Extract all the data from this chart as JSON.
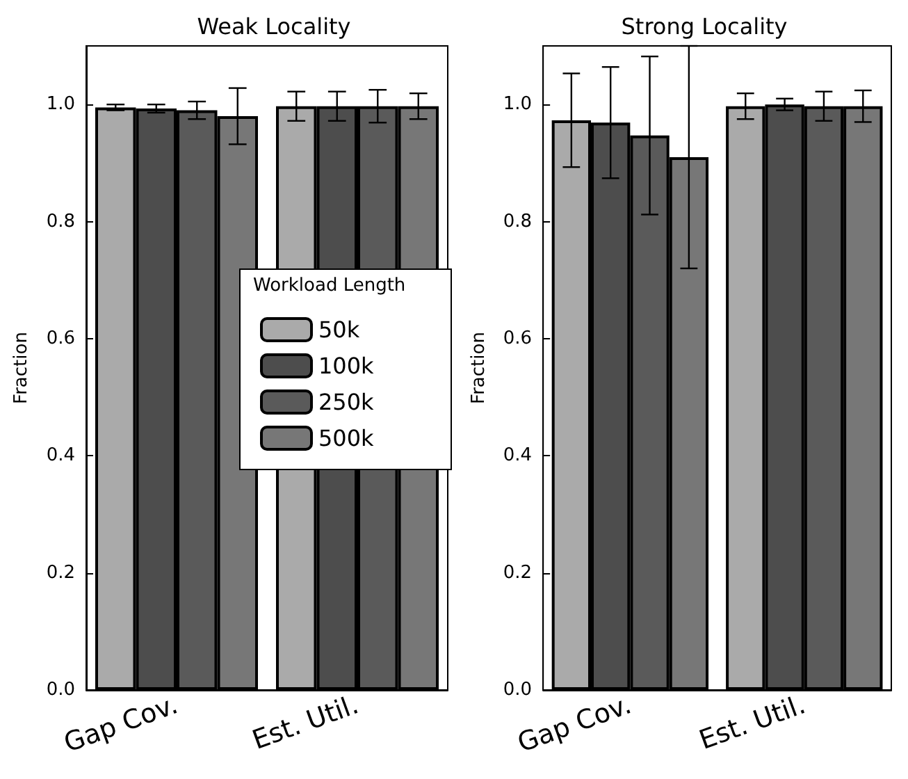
{
  "chart_data": [
    {
      "type": "bar",
      "title": "Weak Locality",
      "ylabel": "Fraction",
      "legend_title": "Workload Length",
      "legend": "center",
      "grid": false,
      "categories": [
        "Gap Cov.",
        "Est. Util."
      ],
      "ylim": [
        0,
        1.1
      ],
      "yticks": [
        {
          "value": 0,
          "label": "0.0"
        },
        {
          "value": 0.2,
          "label": "0.2"
        },
        {
          "value": 0.4,
          "label": "0.4"
        },
        {
          "value": 0.6,
          "label": "0.6"
        },
        {
          "value": 0.8,
          "label": "0.8"
        },
        {
          "value": 1.0,
          "label": "1.0"
        }
      ],
      "series": [
        {
          "name": "50k",
          "color": "#aaaaaa",
          "values": [
            0.995,
            0.997
          ],
          "errors": [
            0.005,
            0.025
          ]
        },
        {
          "name": "100k",
          "color": "#4d4d4d",
          "values": [
            0.993,
            0.997
          ],
          "errors": [
            0.007,
            0.025
          ]
        },
        {
          "name": "250k",
          "color": "#5a5a5a",
          "values": [
            0.99,
            0.997
          ],
          "errors": [
            0.015,
            0.028
          ]
        },
        {
          "name": "500k",
          "color": "#777777",
          "values": [
            0.98,
            0.997
          ],
          "errors": [
            0.048,
            0.022
          ]
        }
      ]
    },
    {
      "type": "bar",
      "title": "Strong Locality",
      "ylabel": "Fraction",
      "legend": false,
      "grid": false,
      "categories": [
        "Gap Cov.",
        "Est. Util."
      ],
      "ylim": [
        0,
        1.1
      ],
      "yticks": [
        {
          "value": 0,
          "label": "0.0"
        },
        {
          "value": 0.2,
          "label": "0.2"
        },
        {
          "value": 0.4,
          "label": "0.4"
        },
        {
          "value": 0.6,
          "label": "0.6"
        },
        {
          "value": 0.8,
          "label": "0.8"
        },
        {
          "value": 1.0,
          "label": "1.0"
        }
      ],
      "series": [
        {
          "color": "#aaaaaa",
          "values": [
            0.973,
            0.997
          ],
          "errors": [
            0.08,
            0.022
          ]
        },
        {
          "color": "#4d4d4d",
          "values": [
            0.969,
            1.0
          ],
          "errors": [
            0.095,
            0.01
          ]
        },
        {
          "color": "#5a5a5a",
          "values": [
            0.947,
            0.997
          ],
          "errors": [
            0.135,
            0.025
          ]
        },
        {
          "color": "#777777",
          "values": [
            0.91,
            0.997
          ],
          "errors": [
            0.19,
            0.027
          ]
        }
      ]
    }
  ]
}
